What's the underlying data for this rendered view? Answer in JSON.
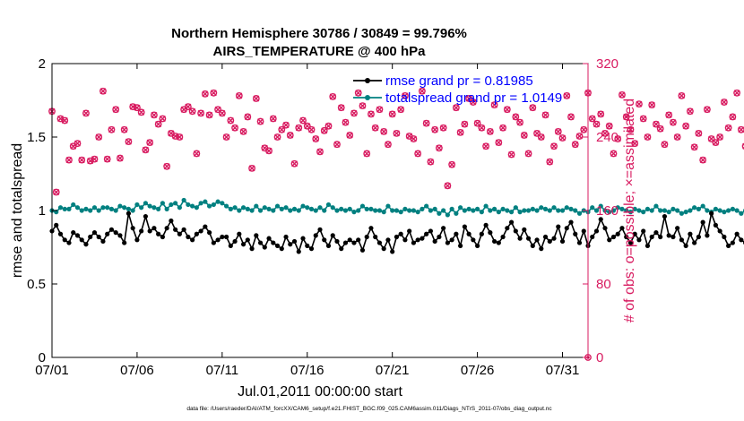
{
  "chart_data": {
    "type": "line",
    "title_line1": "Northern Hemisphere 30786 / 30849 = 99.796%",
    "title_line2": "AIRS_TEMPERATURE @ 400 hPa",
    "xlabel": "Jul.01,2011 00:00:00 start",
    "ylabel_left": "rmse and totalspread",
    "ylabel_right": "# of obs: o=possible; ×=assimilated",
    "footer": "data file: /Users/raeder/DAI/ATM_forcXX/CAM6_setup/f.e21.FHIST_BGC.f09_025.CAM6assim.011/Diags_NTrS_2011-07/obs_diag_output.nc",
    "x_range": [
      0,
      31.5
    ],
    "x_ticks": [
      0,
      5,
      10,
      15,
      20,
      25,
      30
    ],
    "x_tick_labels": [
      "07/01",
      "07/06",
      "07/11",
      "07/16",
      "07/21",
      "07/26",
      "07/31"
    ],
    "y_left_range": [
      0,
      2
    ],
    "y_left_ticks": [
      0,
      0.5,
      1,
      1.5,
      2
    ],
    "y_left_tick_labels": [
      "0",
      "0.5",
      "1",
      "1.5",
      "2"
    ],
    "y_right_range": [
      0,
      320
    ],
    "y_right_ticks": [
      0,
      80,
      160,
      240,
      320
    ],
    "y_right_tick_labels": [
      "0",
      "80",
      "160",
      "240",
      "320"
    ],
    "colors": {
      "rmse": "#000000",
      "totalspread": "#008080",
      "obs": "#d81b60",
      "legend_text": "#0000ff",
      "axis": "#000000"
    },
    "legend": [
      {
        "name": "rmse grand pr = 0.81985",
        "series": "rmse"
      },
      {
        "name": "totalspread grand pr = 1.0149",
        "series": "totalspread"
      }
    ],
    "step": 0.25,
    "series": [
      {
        "name": "rmse",
        "axis": "left",
        "values": [
          0.86,
          0.9,
          0.84,
          0.8,
          0.78,
          0.85,
          0.83,
          0.8,
          0.77,
          0.82,
          0.85,
          0.82,
          0.79,
          0.84,
          0.87,
          0.85,
          0.83,
          0.78,
          0.98,
          0.88,
          0.8,
          0.86,
          0.96,
          0.86,
          0.88,
          0.84,
          0.82,
          0.88,
          0.93,
          0.87,
          0.84,
          0.87,
          0.82,
          0.8,
          0.84,
          0.86,
          0.89,
          0.85,
          0.78,
          0.8,
          0.82,
          0.82,
          0.76,
          0.79,
          0.84,
          0.77,
          0.8,
          0.74,
          0.83,
          0.78,
          0.75,
          0.81,
          0.78,
          0.76,
          0.74,
          0.82,
          0.77,
          0.79,
          0.72,
          0.81,
          0.76,
          0.74,
          0.83,
          0.87,
          0.8,
          0.76,
          0.83,
          0.79,
          0.74,
          0.78,
          0.8,
          0.78,
          0.8,
          0.73,
          0.82,
          0.88,
          0.82,
          0.78,
          0.74,
          0.8,
          0.72,
          0.82,
          0.84,
          0.8,
          0.86,
          0.78,
          0.8,
          0.81,
          0.84,
          0.86,
          0.79,
          0.82,
          0.88,
          0.78,
          0.8,
          0.84,
          0.76,
          0.89,
          0.84,
          0.8,
          0.76,
          0.84,
          0.9,
          0.85,
          0.79,
          0.78,
          0.82,
          0.88,
          0.92,
          0.86,
          0.81,
          0.87,
          0.81,
          0.76,
          0.8,
          0.74,
          0.82,
          0.79,
          0.81,
          0.89,
          0.79,
          0.88,
          0.92,
          0.84,
          0.78,
          0.86,
          0.76,
          0.82,
          0.86,
          0.94,
          0.88,
          0.8,
          0.82,
          0.84,
          0.88,
          0.82,
          0.78,
          0.84,
          0.8,
          0.86,
          0.76,
          0.82,
          0.85,
          0.82,
          0.96,
          0.83,
          0.82,
          0.88,
          0.8,
          0.76,
          0.84,
          0.78,
          0.82,
          0.92,
          0.83,
          0.98,
          0.9,
          0.86,
          0.82,
          0.76,
          0.78,
          0.84,
          0.8,
          0.78,
          0.76,
          0.84,
          0.78,
          0.72,
          0.82,
          0.85,
          0.8,
          0.78,
          0.84,
          0.73,
          0.78,
          0.8,
          0.82,
          0.78,
          0.84,
          0.8,
          0.82,
          0.82,
          0.78,
          0.86,
          0.84,
          0.78,
          0.88
        ]
      },
      {
        "name": "totalspread",
        "axis": "left",
        "values": [
          1.0,
          0.99,
          1.02,
          1.01,
          1.01,
          1.04,
          1.02,
          1.0,
          1.01,
          1.0,
          1.02,
          1.0,
          1.02,
          1.02,
          1.01,
          1.0,
          1.03,
          1.02,
          1.01,
          1.0,
          1.04,
          1.02,
          1.05,
          1.03,
          1.02,
          1.01,
          1.05,
          1.01,
          1.04,
          1.05,
          1.02,
          1.07,
          1.04,
          1.03,
          1.02,
          1.05,
          1.06,
          1.03,
          1.04,
          1.06,
          1.05,
          1.03,
          1.01,
          1.02,
          1.0,
          1.02,
          1.01,
          1.0,
          1.03,
          1.0,
          1.02,
          1.01,
          1.0,
          1.03,
          1.01,
          1.02,
          1.0,
          1.01,
          1.0,
          1.03,
          1.02,
          1.01,
          1.0,
          1.02,
          1.0,
          1.04,
          1.02,
          1.0,
          1.01,
          1.0,
          1.01,
          0.99,
          1.0,
          1.03,
          1.01,
          1.01,
          1.0,
          1.0,
          0.99,
          1.03,
          1.0,
          1.0,
          0.99,
          1.01,
          1.0,
          1.0,
          0.99,
          1.01,
          1.03,
          1.0,
          1.01,
          0.98,
          1.0,
          0.97,
          1.01,
          0.98,
          1.02,
          1.0,
          1.01,
          1.0,
          1.01,
          0.99,
          1.03,
          1.0,
          1.01,
          0.99,
          1.01,
          1.0,
          0.99,
          1.02,
          0.99,
          1.0,
          1.0,
          1.01,
          1.0,
          1.02,
          1.01,
          1.0,
          1.02,
          1.0,
          1.0,
          1.02,
          1.01,
          1.0,
          0.98,
          1.0,
          0.99,
          1.02,
          1.0,
          1.03,
          1.0,
          0.99,
          1.0,
          1.02,
          1.01,
          1.0,
          0.99,
          1.01,
          1.0,
          0.99,
          1.01,
          1.0,
          1.03,
          1.0,
          1.0,
          0.99,
          1.01,
          1.0,
          0.98,
          0.99,
          1.0,
          1.02,
          1.01,
          1.03,
          1.0,
          0.99,
          1.01,
          1.0,
          0.99,
          1.0,
          1.01,
          1.0,
          0.98,
          1.0,
          0.99,
          1.0,
          1.01,
          1.0,
          0.98,
          1.0,
          0.99,
          1.01,
          1.0,
          0.99,
          1.0,
          0.99,
          0.98,
          1.0,
          0.98,
          0.99,
          0.97,
          0.99,
          0.98,
          0.97,
          0.99
        ]
      },
      {
        "name": "obs_possible",
        "axis": "right",
        "marker": "o",
        "values": [
          268,
          180,
          260,
          258,
          215,
          230,
          233,
          215,
          266,
          214,
          216,
          240,
          290,
          216,
          248,
          270,
          217,
          248,
          235,
          273,
          272,
          267,
          226,
          234,
          264,
          254,
          260,
          208,
          244,
          241,
          240,
          270,
          273,
          268,
          222,
          266,
          287,
          264,
          288,
          270,
          266,
          240,
          258,
          250,
          285,
          246,
          262,
          206,
          282,
          257,
          228,
          225,
          260,
          240,
          248,
          253,
          242,
          211,
          250,
          258,
          252,
          248,
          238,
          224,
          247,
          252,
          284,
          232,
          272,
          256,
          242,
          266,
          288,
          274,
          222,
          265,
          250,
          270,
          246,
          232,
          265,
          244,
          270,
          285,
          241,
          238,
          222,
          290,
          255,
          213,
          248,
          228,
          250,
          187,
          210,
          272,
          245,
          254,
          282,
          278,
          255,
          250,
          230,
          246,
          275,
          234,
          250,
          270,
          221,
          262,
          256,
          242,
          222,
          272,
          244,
          240,
          264,
          213,
          230,
          246,
          239,
          285,
          262,
          232,
          241,
          248,
          288,
          260,
          254,
          265,
          244,
          252,
          222,
          238,
          286,
          262,
          248,
          233,
          276,
          260,
          240,
          275,
          254,
          249,
          232,
          264,
          256,
          240,
          285,
          252,
          268,
          229,
          244,
          215,
          270,
          238,
          234,
          240,
          278,
          250,
          262,
          288,
          248,
          230,
          218,
          256,
          261,
          244,
          214,
          248,
          263,
          260,
          220,
          244,
          240,
          255,
          218,
          282,
          246,
          241,
          252,
          262,
          236,
          288,
          230,
          256,
          248,
          290,
          236
        ]
      },
      {
        "name": "obs_assimilated",
        "axis": "right",
        "marker": "x",
        "values": [
          268,
          180,
          260,
          258,
          215,
          230,
          233,
          215,
          266,
          214,
          216,
          240,
          290,
          216,
          248,
          270,
          217,
          248,
          235,
          273,
          272,
          267,
          226,
          234,
          264,
          254,
          260,
          208,
          244,
          241,
          240,
          270,
          273,
          268,
          222,
          266,
          287,
          264,
          288,
          270,
          266,
          240,
          258,
          250,
          285,
          246,
          262,
          206,
          282,
          257,
          228,
          225,
          260,
          240,
          248,
          253,
          242,
          211,
          250,
          258,
          252,
          248,
          238,
          224,
          247,
          252,
          284,
          232,
          272,
          256,
          242,
          266,
          288,
          274,
          222,
          265,
          250,
          270,
          246,
          232,
          265,
          244,
          270,
          285,
          241,
          238,
          222,
          290,
          255,
          213,
          248,
          228,
          250,
          187,
          210,
          272,
          245,
          254,
          282,
          278,
          255,
          250,
          230,
          246,
          275,
          234,
          250,
          270,
          221,
          262,
          256,
          242,
          222,
          272,
          244,
          240,
          264,
          213,
          230,
          246,
          239,
          285,
          262,
          232,
          241,
          248,
          288,
          260,
          254,
          265,
          244,
          252,
          222,
          238,
          286,
          262,
          248,
          233,
          276,
          260,
          240,
          275,
          254,
          249,
          232,
          264,
          256,
          240,
          285,
          252,
          268,
          229,
          244,
          215,
          270,
          238,
          234,
          240,
          278,
          250,
          262,
          288,
          248,
          230,
          218,
          256,
          261,
          244,
          214,
          248,
          263,
          260,
          220,
          244,
          240,
          255,
          218,
          282,
          246,
          241,
          252,
          262,
          236,
          288,
          230,
          256,
          248,
          290,
          236
        ]
      }
    ]
  }
}
